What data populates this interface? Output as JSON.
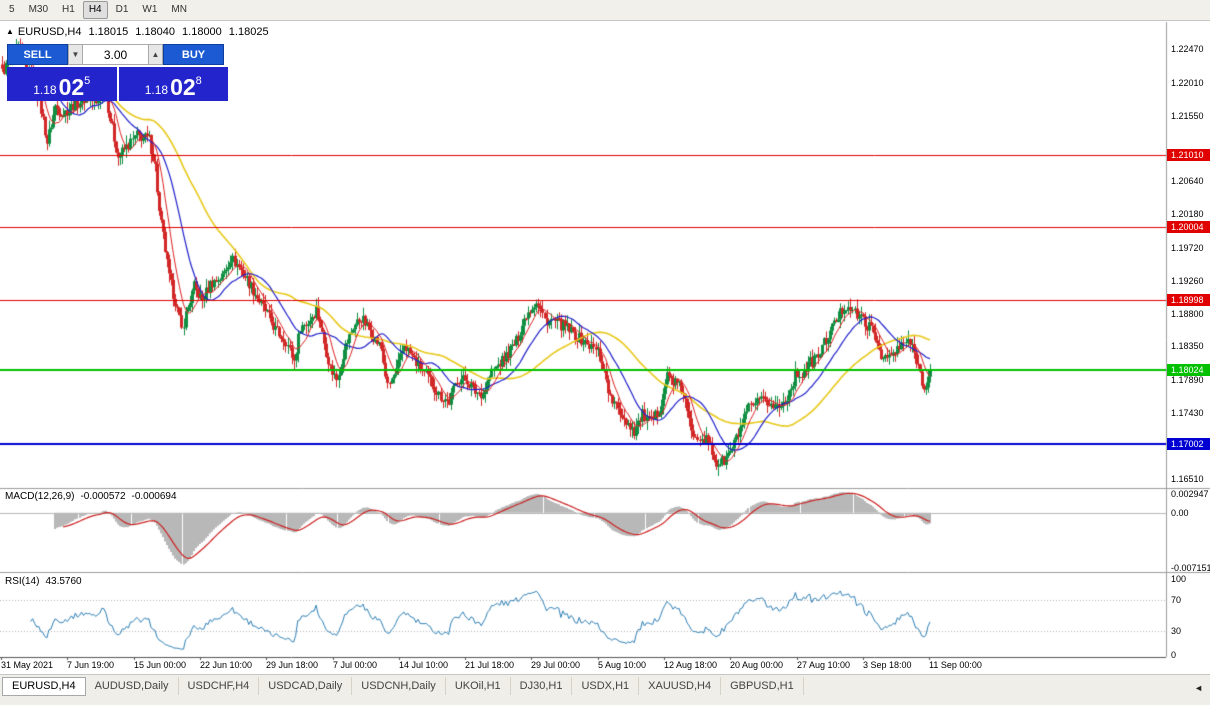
{
  "toolbar": {
    "timeframes": [
      "5",
      "M30",
      "H1",
      "H4",
      "D1",
      "W1",
      "MN"
    ],
    "active": "H4"
  },
  "header": {
    "collapse_icon": "▲",
    "title": "EURUSD,H4",
    "ohlc": [
      "1.18015",
      "1.18040",
      "1.18000",
      "1.18025"
    ]
  },
  "trade_panel": {
    "sell_label": "SELL",
    "buy_label": "BUY",
    "volume": "3.00",
    "spinner_down_icon": "▼",
    "spinner_up_icon": "▲",
    "sell_price": {
      "prefix": "1.18",
      "big": "02",
      "sup": "5"
    },
    "buy_price": {
      "prefix": "1.18",
      "big": "02",
      "sup": "8"
    }
  },
  "colors": {
    "bull": "#108f42",
    "bear": "#d22727",
    "ma_fast": "#dd2222",
    "ma_mid": "#2222cc",
    "ma_slow": "#e8c91a",
    "macd_hist": "#b8b8b8",
    "macd_signal": "#cc2222",
    "rsi_line": "#2e7fb5",
    "panel_button_blue": "#1b5ad2",
    "panel_price_blue": "#2424cd"
  },
  "chart_data": {
    "type": "candlestick",
    "symbol": "EURUSD",
    "timeframe": "H4",
    "price_axis": {
      "top": 1.2285,
      "bottom": 1.164,
      "ticks": [
        "1.22470",
        "1.22010",
        "1.21550",
        "1.20640",
        "1.20180",
        "1.19720",
        "1.19260",
        "1.18800",
        "1.18350",
        "1.17890",
        "1.17430",
        "1.16510"
      ]
    },
    "hlines": [
      {
        "label": "1.21010",
        "color": "#e00000",
        "width": 1
      },
      {
        "label": "1.20004",
        "color": "#e00000",
        "width": 1
      },
      {
        "label": "1.18998",
        "color": "#e00000",
        "width": 1
      },
      {
        "label": "1.18024",
        "color": "#00c000",
        "width": 2
      },
      {
        "label": "1.17002",
        "color": "#0000d2",
        "width": 2
      }
    ],
    "bar_count": 456,
    "last_close": 1.18025,
    "close_anchors": [
      [
        0,
        1.2215
      ],
      [
        4,
        1.2232
      ],
      [
        8,
        1.2248
      ],
      [
        12,
        1.2218
      ],
      [
        16,
        1.22
      ],
      [
        20,
        1.215
      ],
      [
        22,
        1.2118
      ],
      [
        26,
        1.2168
      ],
      [
        30,
        1.2158
      ],
      [
        36,
        1.2172
      ],
      [
        42,
        1.2182
      ],
      [
        46,
        1.217
      ],
      [
        50,
        1.22
      ],
      [
        53,
        1.215
      ],
      [
        57,
        1.2098
      ],
      [
        60,
        1.2108
      ],
      [
        66,
        1.2128
      ],
      [
        72,
        1.2122
      ],
      [
        75,
        1.2085
      ],
      [
        77,
        1.202
      ],
      [
        79,
        1.1988
      ],
      [
        82,
        1.193
      ],
      [
        85,
        1.1898
      ],
      [
        88,
        1.1858
      ],
      [
        90,
        1.188
      ],
      [
        94,
        1.1918
      ],
      [
        98,
        1.1898
      ],
      [
        102,
        1.1922
      ],
      [
        108,
        1.1932
      ],
      [
        112,
        1.1958
      ],
      [
        116,
        1.1945
      ],
      [
        120,
        1.1928
      ],
      [
        126,
        1.1898
      ],
      [
        130,
        1.188
      ],
      [
        134,
        1.1858
      ],
      [
        139,
        1.1843
      ],
      [
        143,
        1.1815
      ],
      [
        146,
        1.1862
      ],
      [
        150,
        1.1868
      ],
      [
        154,
        1.1888
      ],
      [
        158,
        1.184
      ],
      [
        161,
        1.1805
      ],
      [
        164,
        1.179
      ],
      [
        168,
        1.1835
      ],
      [
        172,
        1.1862
      ],
      [
        176,
        1.1875
      ],
      [
        180,
        1.1858
      ],
      [
        186,
        1.1832
      ],
      [
        189,
        1.1778
      ],
      [
        193,
        1.18
      ],
      [
        197,
        1.1838
      ],
      [
        200,
        1.1825
      ],
      [
        204,
        1.1808
      ],
      [
        210,
        1.1788
      ],
      [
        214,
        1.1768
      ],
      [
        219,
        1.1758
      ],
      [
        223,
        1.179
      ],
      [
        228,
        1.1788
      ],
      [
        232,
        1.1772
      ],
      [
        236,
        1.177
      ],
      [
        240,
        1.18
      ],
      [
        246,
        1.1818
      ],
      [
        252,
        1.1842
      ],
      [
        257,
        1.188
      ],
      [
        262,
        1.1898
      ],
      [
        266,
        1.1872
      ],
      [
        270,
        1.187
      ],
      [
        276,
        1.1862
      ],
      [
        282,
        1.1848
      ],
      [
        287,
        1.1838
      ],
      [
        292,
        1.1828
      ],
      [
        296,
        1.179
      ],
      [
        298,
        1.1762
      ],
      [
        302,
        1.1748
      ],
      [
        306,
        1.1732
      ],
      [
        310,
        1.1718
      ],
      [
        314,
        1.174
      ],
      [
        318,
        1.1728
      ],
      [
        322,
        1.1748
      ],
      [
        326,
        1.1795
      ],
      [
        330,
        1.1785
      ],
      [
        334,
        1.1772
      ],
      [
        338,
        1.1715
      ],
      [
        342,
        1.1712
      ],
      [
        346,
        1.1702
      ],
      [
        350,
        1.1672
      ],
      [
        354,
        1.1676
      ],
      [
        358,
        1.1694
      ],
      [
        362,
        1.172
      ],
      [
        366,
        1.1748
      ],
      [
        370,
        1.1756
      ],
      [
        374,
        1.176
      ],
      [
        378,
        1.1752
      ],
      [
        382,
        1.1752
      ],
      [
        386,
        1.1772
      ],
      [
        389,
        1.1795
      ],
      [
        392,
        1.1798
      ],
      [
        396,
        1.1812
      ],
      [
        400,
        1.1822
      ],
      [
        404,
        1.1845
      ],
      [
        408,
        1.1866
      ],
      [
        412,
        1.1886
      ],
      [
        415,
        1.1894
      ],
      [
        418,
        1.188
      ],
      [
        422,
        1.1872
      ],
      [
        426,
        1.1858
      ],
      [
        429,
        1.184
      ],
      [
        432,
        1.1818
      ],
      [
        436,
        1.1822
      ],
      [
        440,
        1.1832
      ],
      [
        444,
        1.1845
      ],
      [
        448,
        1.1818
      ],
      [
        451,
        1.1788
      ],
      [
        453,
        1.1778
      ],
      [
        455,
        1.18025
      ]
    ],
    "xaxis_labels": [
      "31 May 2021",
      "7 Jun 19:00",
      "15 Jun 00:00",
      "22 Jun 10:00",
      "29 Jun 18:00",
      "7 Jul 00:00",
      "14 Jul 10:00",
      "21 Jul 18:00",
      "29 Jul 00:00",
      "5 Aug 10:00",
      "12 Aug 18:00",
      "20 Aug 00:00",
      "27 Aug 10:00",
      "3 Sep 18:00",
      "11 Sep 00:00"
    ]
  },
  "indicators": {
    "macd": {
      "label": "MACD(12,26,9)",
      "values": [
        "-0.000572",
        "-0.000694"
      ],
      "axis": [
        "0.002947",
        "0.00",
        "-0.007151"
      ]
    },
    "rsi": {
      "label": "RSI(14)",
      "value": "43.5760",
      "axis": [
        "100",
        "70",
        "30",
        "0"
      ]
    }
  },
  "footer": {
    "tabs": [
      {
        "label": "EURUSD,H4",
        "active": true
      },
      {
        "label": "AUDUSD,Daily",
        "active": false
      },
      {
        "label": "USDCHF,H4",
        "active": false
      },
      {
        "label": "USDCAD,Daily",
        "active": false
      },
      {
        "label": "USDCNH,Daily",
        "active": false
      },
      {
        "label": "UKOil,H1",
        "active": false
      },
      {
        "label": "DJ30,H1",
        "active": false
      },
      {
        "label": "USDX,H1",
        "active": false
      },
      {
        "label": "XAUUSD,H4",
        "active": false
      },
      {
        "label": "GBPUSD,H1",
        "active": false
      }
    ],
    "scroll_icon": "◄"
  }
}
